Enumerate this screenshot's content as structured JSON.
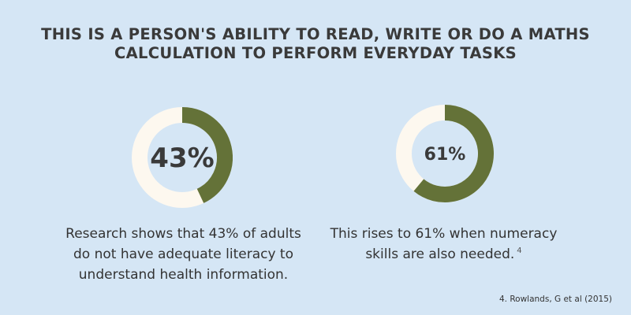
{
  "title": {
    "line1": "THIS IS A PERSON'S ABILITY TO READ, WRITE OR DO A MATHS",
    "line2": "CALCULATION TO PERFORM EVERYDAY TASKS"
  },
  "colors": {
    "background": "#d5e6f5",
    "ring_track": "#fdf8ef",
    "ring_fill": "#647238",
    "text": "#333333"
  },
  "chart_data": [
    {
      "type": "pie",
      "variant": "donut",
      "values": [
        43,
        57
      ],
      "highlight_value": 43,
      "center_label": "43%",
      "caption_lines": [
        "Research shows that 43% of adults",
        "do not have adequate literacy to",
        "understand health information."
      ]
    },
    {
      "type": "pie",
      "variant": "donut",
      "values": [
        61,
        39
      ],
      "highlight_value": 61,
      "center_label": "61%",
      "caption_lines": [
        "This rises to 61% when numeracy",
        "skills are also needed."
      ],
      "footnote_marker": "4"
    }
  ],
  "source": "4. Rowlands, G et al (2015)"
}
